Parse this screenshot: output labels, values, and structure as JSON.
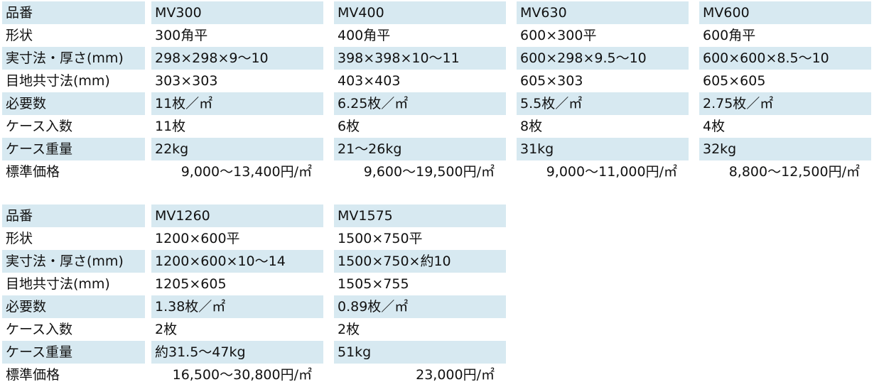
{
  "document": {
    "kind": "product-spec-table",
    "language": "ja"
  },
  "colors": {
    "row_highlight": "#d7e9f1",
    "text": "#111111",
    "background": "#ffffff"
  },
  "row_labels": [
    "品番",
    "形状",
    "実寸法・厚さ(mm)",
    "目地共寸法(mm)",
    "必要数",
    "ケース入数",
    "ケース重量",
    "標準価格"
  ],
  "tables": [
    {
      "name": "spec-table-top",
      "products": [
        {
          "item_no": "MV300",
          "values": [
            "MV300",
            "300角平",
            "298×298×9～10",
            "303×303",
            "11枚／㎡",
            "11枚",
            "22kg",
            "9,000～13,400円/㎡"
          ]
        },
        {
          "item_no": "MV400",
          "values": [
            "MV400",
            "400角平",
            "398×398×10～11",
            "403×403",
            "6.25枚／㎡",
            "6枚",
            "21～26kg",
            "9,600～19,500円/㎡"
          ]
        },
        {
          "item_no": "MV630",
          "values": [
            "MV630",
            "600×300平",
            "600×298×9.5～10",
            "605×303",
            "5.5枚／㎡",
            "8枚",
            "31kg",
            "9,000～11,000円/㎡"
          ]
        },
        {
          "item_no": "MV600",
          "values": [
            "MV600",
            "600角平",
            "600×600×8.5～10",
            "605×605",
            "2.75枚／㎡",
            "4枚",
            "32kg",
            "8,800～12,500円/㎡"
          ]
        }
      ]
    },
    {
      "name": "spec-table-bottom",
      "products": [
        {
          "item_no": "MV1260",
          "values": [
            "MV1260",
            "1200×600平",
            "1200×600×10～14",
            "1205×605",
            "1.38枚／㎡",
            "2枚",
            "約31.5～47kg",
            "16,500～30,800円/㎡"
          ]
        },
        {
          "item_no": "MV1575",
          "values": [
            "MV1575",
            "1500×750平",
            "1500×750×約10",
            "1505×755",
            "0.89枚／㎡",
            "2枚",
            "51kg",
            "23,000円/㎡"
          ]
        }
      ]
    }
  ]
}
